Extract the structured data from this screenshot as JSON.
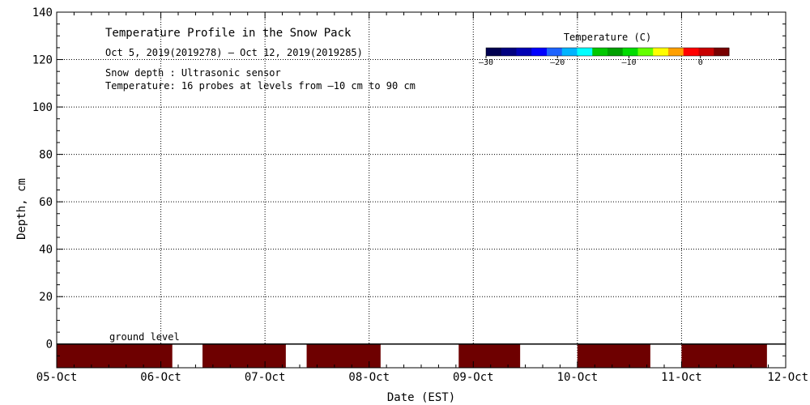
{
  "chart_data": {
    "type": "heatmap",
    "title": "Temperature Profile in the Snow Pack",
    "subtitle": "Oct  5, 2019(2019278) – Oct 12, 2019(2019285)",
    "info_lines": [
      "Snow depth : Ultrasonic sensor",
      "Temperature: 16 probes at levels from –10 cm to 90 cm"
    ],
    "xlabel": "Date (EST)",
    "ylabel": "Depth, cm",
    "x_ticks": [
      "05-Oct",
      "06-Oct",
      "07-Oct",
      "08-Oct",
      "09-Oct",
      "10-Oct",
      "11-Oct",
      "12-Oct"
    ],
    "xlim_days": [
      0,
      7
    ],
    "ylim": [
      -10,
      140
    ],
    "y_ticks": [
      0,
      20,
      40,
      60,
      80,
      100,
      120,
      140
    ],
    "grid": true,
    "annotation": "ground level",
    "ground_level_cm": 0,
    "colorbar": {
      "title": "Temperature (C)",
      "range": [
        -30,
        4
      ],
      "tick_values": [
        -30,
        -20,
        -10,
        0
      ],
      "tick_labels": [
        "–30",
        "–20",
        "–10",
        "0"
      ],
      "colors": [
        "#000050",
        "#000080",
        "#0000b4",
        "#0000ff",
        "#1e64ff",
        "#00b4ff",
        "#00ffff",
        "#00c800",
        "#00a000",
        "#00dc00",
        "#64ff00",
        "#ffff00",
        "#ffa000",
        "#ff0000",
        "#c80000",
        "#780000"
      ]
    },
    "data_segments": [
      {
        "start_day": 0.0,
        "end_day": 1.11,
        "depth_top_cm": 0,
        "depth_bottom_cm": -10,
        "temperature_c": 3
      },
      {
        "start_day": 1.4,
        "end_day": 2.2,
        "depth_top_cm": 0,
        "depth_bottom_cm": -10,
        "temperature_c": 3
      },
      {
        "start_day": 2.4,
        "end_day": 3.11,
        "depth_top_cm": 0,
        "depth_bottom_cm": -10,
        "temperature_c": 3
      },
      {
        "start_day": 3.86,
        "end_day": 4.45,
        "depth_top_cm": 0,
        "depth_bottom_cm": -10,
        "temperature_c": 3
      },
      {
        "start_day": 5.0,
        "end_day": 5.7,
        "depth_top_cm": 0,
        "depth_bottom_cm": -10,
        "temperature_c": 3
      },
      {
        "start_day": 6.0,
        "end_day": 6.82,
        "depth_top_cm": 0,
        "depth_bottom_cm": -10,
        "temperature_c": 3
      }
    ],
    "data_color": "#6e0000"
  }
}
